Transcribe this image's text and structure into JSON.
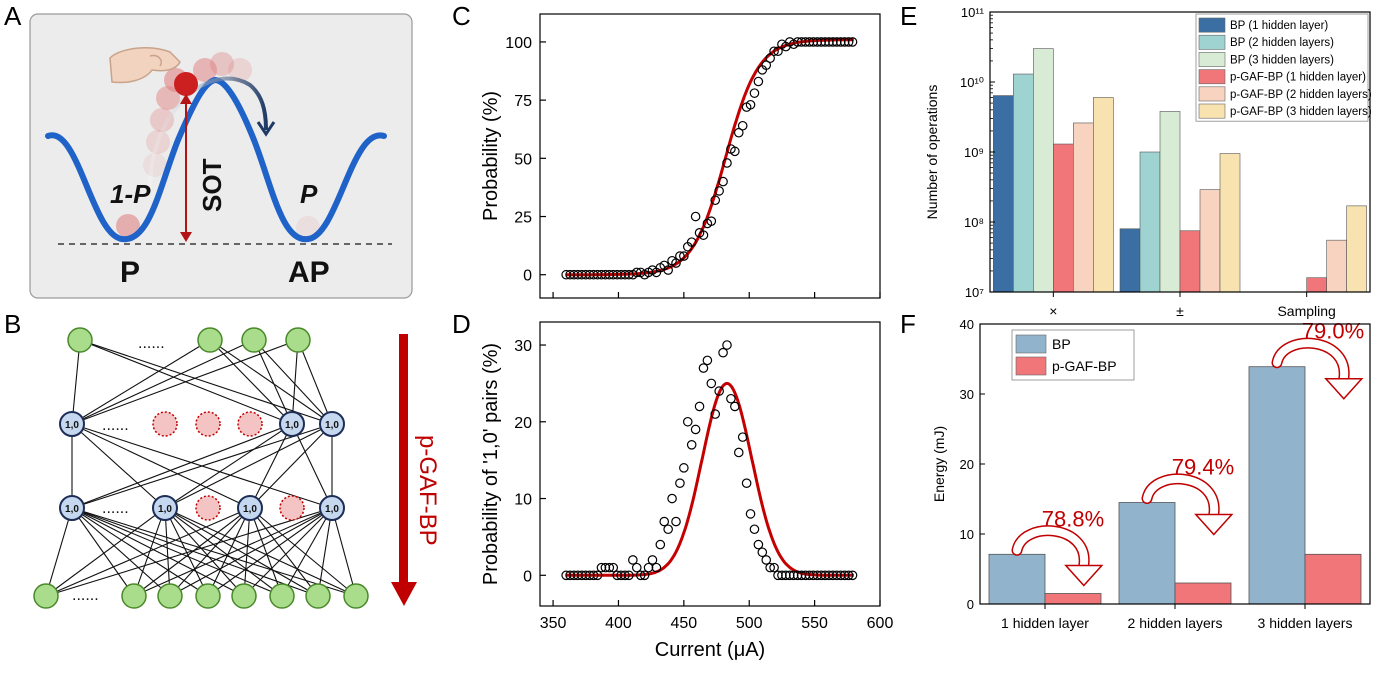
{
  "panel_letters": {
    "a": "A",
    "b": "B",
    "c": "C",
    "d": "D",
    "e": "E",
    "f": "F"
  },
  "panel_a": {
    "label_left_prob": "1-P",
    "label_right_prob": "P",
    "label_sot": "SOT",
    "label_left_state": "P",
    "label_right_state": "AP",
    "colors": {
      "well": "#1f62c8",
      "ball": "#cc1f1f",
      "arrow": "#b31313",
      "background": "#ececec"
    }
  },
  "panel_b": {
    "neuron_label": "1,0",
    "ellipsis": "......",
    "side_label": "p-GAF-BP",
    "colors": {
      "input_fill": "#a9dc8b",
      "hidden_fill": "#c5d8ef",
      "dropped_fill": "#f4c3c3",
      "arrow": "#c00000"
    }
  },
  "chart_data": [
    {
      "id": "C",
      "type": "scatter",
      "ylabel": "Probability (%)",
      "xlim": [
        340,
        600
      ],
      "ylim": [
        -10,
        112
      ],
      "yticks": [
        0,
        25,
        50,
        75,
        100
      ],
      "x": [
        360,
        363,
        366,
        369,
        372,
        375,
        378,
        381,
        384,
        387,
        390,
        393,
        396,
        399,
        402,
        405,
        408,
        411,
        414,
        417,
        420,
        423,
        426,
        429,
        432,
        435,
        438,
        441,
        444,
        447,
        450,
        453,
        456,
        459,
        462,
        465,
        468,
        471,
        474,
        477,
        480,
        483,
        486,
        489,
        492,
        495,
        498,
        501,
        504,
        507,
        510,
        513,
        516,
        519,
        522,
        525,
        528,
        531,
        534,
        537,
        540,
        543,
        546,
        549,
        552,
        555,
        558,
        561,
        564,
        567,
        570,
        573,
        576,
        579
      ],
      "y": [
        0,
        0,
        0,
        0,
        0,
        0,
        0,
        0,
        0,
        0,
        0,
        0,
        0,
        0,
        0,
        0,
        0,
        0,
        1,
        1,
        0,
        1,
        2,
        1,
        3,
        4,
        2,
        6,
        5,
        8,
        8,
        12,
        14,
        25,
        18,
        17,
        22,
        23,
        32,
        36,
        40,
        48,
        54,
        53,
        61,
        64,
        72,
        73,
        78,
        83,
        88,
        90,
        93,
        96,
        96,
        99,
        98,
        100,
        99,
        100,
        100,
        100,
        100,
        100,
        100,
        100,
        100,
        100,
        100,
        100,
        100,
        100,
        100,
        100
      ],
      "fit": {
        "type": "sigmoid",
        "amplitude": 101,
        "x0": 482,
        "width": 12.5,
        "xrange": [
          360,
          580
        ]
      },
      "colors": {
        "fit": "#c40000",
        "marker": "#000000"
      }
    },
    {
      "id": "D",
      "type": "scatter",
      "xlabel": "Current (μA)",
      "ylabel": "Probability of '1,0' pairs (%)",
      "xlim": [
        340,
        600
      ],
      "ylim": [
        -4,
        33
      ],
      "yticks": [
        0,
        10,
        20,
        30
      ],
      "xticks": [
        350,
        400,
        450,
        500,
        550,
        600
      ],
      "x": [
        360,
        363,
        366,
        369,
        372,
        375,
        378,
        381,
        384,
        387,
        390,
        393,
        396,
        399,
        402,
        405,
        408,
        411,
        414,
        417,
        420,
        423,
        426,
        429,
        432,
        435,
        438,
        441,
        444,
        447,
        450,
        453,
        456,
        459,
        462,
        465,
        468,
        471,
        474,
        477,
        480,
        483,
        486,
        489,
        492,
        495,
        498,
        501,
        504,
        507,
        510,
        513,
        516,
        519,
        522,
        525,
        528,
        531,
        534,
        537,
        540,
        543,
        546,
        549,
        552,
        555,
        558,
        561,
        564,
        567,
        570,
        573,
        576,
        579
      ],
      "y": [
        0,
        0,
        0,
        0,
        0,
        0,
        0,
        0,
        0,
        1,
        1,
        1,
        1,
        0,
        0,
        0,
        0,
        2,
        1,
        0,
        0,
        1,
        2,
        1,
        4,
        7,
        6,
        10,
        7,
        12,
        14,
        20,
        17,
        19,
        22,
        27,
        28,
        25,
        21,
        24,
        29,
        30,
        23,
        22,
        16,
        18,
        12,
        8,
        6,
        4,
        3,
        2,
        1,
        1,
        0,
        0,
        0,
        0,
        0,
        0,
        0,
        0,
        0,
        0,
        0,
        0,
        0,
        0,
        0,
        0,
        0,
        0,
        0,
        0
      ],
      "fit": {
        "type": "gaussian",
        "amplitude": 25,
        "mean": 483,
        "sigma": 19,
        "xrange": [
          360,
          580
        ]
      },
      "colors": {
        "fit": "#c40000",
        "marker": "#000000"
      }
    },
    {
      "id": "E",
      "type": "bar",
      "scale": "log",
      "ylabel": "Number of operations",
      "ylim": [
        10000000,
        100000000000
      ],
      "ytick_labels": [
        "10⁷",
        "10⁸",
        "10⁹",
        "10¹⁰",
        "10¹¹"
      ],
      "categories": [
        "×",
        "±",
        "Sampling"
      ],
      "series": [
        {
          "name": "BP (1 hidden layer)",
          "color": "#3b6fa3",
          "values": [
            6400000000,
            80000000,
            null
          ]
        },
        {
          "name": "BP (2 hidden layers)",
          "color": "#9fd3d1",
          "values": [
            13000000000,
            1000000000,
            null
          ]
        },
        {
          "name": "BP (3 hidden layers)",
          "color": "#d8ecd5",
          "values": [
            30000000000,
            3800000000,
            null
          ]
        },
        {
          "name": "p-GAF-BP (1 hidden layer)",
          "color": "#f0767a",
          "values": [
            1300000000,
            75000000,
            16000000
          ]
        },
        {
          "name": "p-GAF-BP (2 hidden layers)",
          "color": "#f7d3c0",
          "values": [
            2600000000,
            290000000,
            55000000
          ]
        },
        {
          "name": "p-GAF-BP (3 hidden layers)",
          "color": "#f7e2b0",
          "values": [
            6000000000,
            950000000,
            170000000
          ]
        }
      ],
      "legend_position": "top-right"
    },
    {
      "id": "F",
      "type": "bar",
      "ylabel": "Energy (mJ)",
      "ylim": [
        0,
        40
      ],
      "yticks": [
        0,
        10,
        20,
        30,
        40
      ],
      "categories": [
        "1 hidden layer",
        "2 hidden layers",
        "3 hidden layers"
      ],
      "series": [
        {
          "name": "BP",
          "color": "#91b3cc",
          "values": [
            7.1,
            14.5,
            33.9
          ]
        },
        {
          "name": "p-GAF-BP",
          "color": "#f0767a",
          "values": [
            1.5,
            3.0,
            7.1
          ]
        }
      ],
      "annotations": [
        "78.8%",
        "79.4%",
        "79.0%"
      ],
      "annotation_color": "#c00000",
      "legend_position": "top-left"
    }
  ]
}
